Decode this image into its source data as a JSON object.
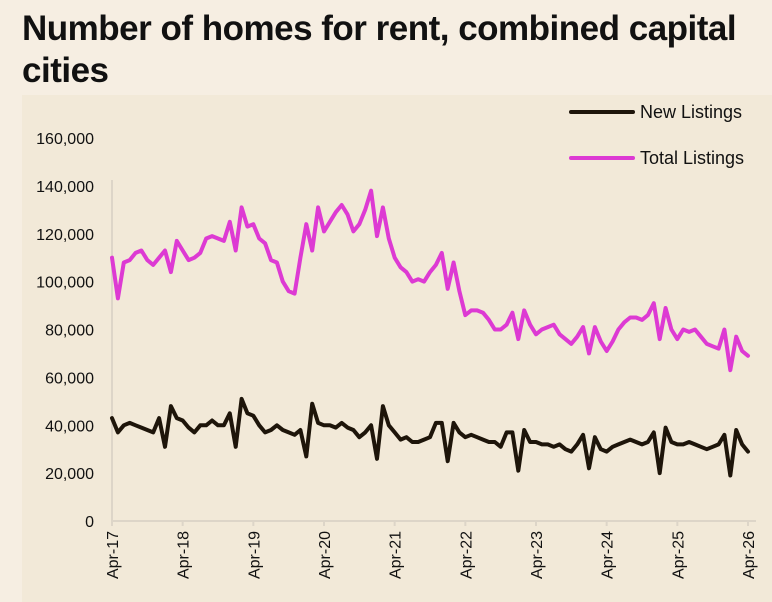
{
  "title": "Number of homes for rent, combined capital cities",
  "colors": {
    "new_listings": "#1E150A",
    "total_listings": "#DD3AD3",
    "background": "#F2E9D8",
    "axis": "#DDD5C8"
  },
  "chart_data": {
    "type": "line",
    "title": "Number of homes for rent, combined capital cities",
    "xlabel": "",
    "ylabel": "",
    "ylim": [
      0,
      160000
    ],
    "y_ticks": [
      "0",
      "20,000",
      "40,000",
      "60,000",
      "80,000",
      "100,000",
      "120,000",
      "140,000",
      "160,000"
    ],
    "x_ticks": [
      "Apr-17",
      "Apr-18",
      "Apr-19",
      "Apr-20",
      "Apr-21",
      "Apr-22",
      "Apr-23",
      "Apr-24",
      "Apr-25",
      "Apr-26"
    ],
    "x_range": [
      "Apr-17",
      "Apr-26"
    ],
    "frequency": "monthly",
    "grid": false,
    "legend_position": "top-right",
    "series": [
      {
        "name": "New Listings",
        "color": "#1E150A",
        "values": [
          43000,
          37000,
          40000,
          41000,
          40000,
          39000,
          38000,
          37000,
          43000,
          31000,
          48000,
          43000,
          42000,
          39000,
          37000,
          40000,
          40000,
          42000,
          40000,
          40000,
          45000,
          31000,
          51000,
          45000,
          44000,
          40000,
          37000,
          38000,
          40000,
          38000,
          37000,
          36000,
          38000,
          27000,
          49000,
          41000,
          40000,
          40000,
          39000,
          41000,
          39000,
          38000,
          35000,
          37000,
          40000,
          26000,
          48000,
          40000,
          37000,
          34000,
          35000,
          33000,
          33000,
          34000,
          35000,
          41000,
          41000,
          25000,
          41000,
          37000,
          35000,
          36000,
          35000,
          34000,
          33000,
          33000,
          31000,
          37000,
          37000,
          21000,
          38000,
          33000,
          33000,
          32000,
          32000,
          31000,
          32000,
          30000,
          29000,
          32000,
          36000,
          22000,
          35000,
          30000,
          29000,
          31000,
          32000,
          33000,
          34000,
          33000,
          32000,
          33000,
          37000,
          20000,
          39000,
          33000,
          32000,
          32000,
          33000,
          32000,
          31000,
          30000,
          31000,
          32000,
          36000,
          19000,
          38000,
          32000,
          29000
        ]
      },
      {
        "name": "Total Listings",
        "color": "#DD3AD3",
        "values": [
          110000,
          93000,
          108000,
          109000,
          112000,
          113000,
          109000,
          107000,
          110000,
          113000,
          104000,
          117000,
          113000,
          109000,
          110000,
          112000,
          118000,
          119000,
          118000,
          117000,
          125000,
          113000,
          131000,
          123000,
          124000,
          118000,
          116000,
          109000,
          108000,
          100000,
          96000,
          95000,
          110000,
          124000,
          113000,
          131000,
          121000,
          125000,
          129000,
          132000,
          128000,
          121000,
          124000,
          130000,
          138000,
          119000,
          131000,
          118000,
          110000,
          106000,
          104000,
          100000,
          101000,
          100000,
          104000,
          107000,
          112000,
          97000,
          108000,
          96000,
          86000,
          88000,
          88000,
          87000,
          84000,
          80000,
          80000,
          82000,
          87000,
          76000,
          88000,
          82000,
          78000,
          80000,
          81000,
          82000,
          78000,
          76000,
          74000,
          77000,
          81000,
          70000,
          81000,
          75000,
          71000,
          75000,
          80000,
          83000,
          85000,
          85000,
          84000,
          86000,
          91000,
          76000,
          89000,
          80000,
          76000,
          80000,
          79000,
          80000,
          77000,
          74000,
          73000,
          72000,
          80000,
          63000,
          77000,
          71000,
          69000
        ]
      }
    ]
  }
}
